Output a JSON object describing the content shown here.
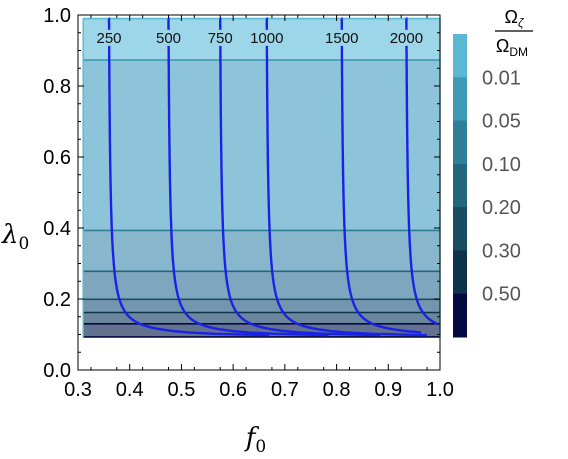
{
  "chart_data": {
    "type": "contour",
    "xlabel": {
      "base": "f",
      "sub": "0"
    },
    "ylabel": {
      "base": "λ",
      "sub": "0"
    },
    "xlim": [
      0.3,
      1.0
    ],
    "ylim": [
      0.0,
      1.0
    ],
    "xticks": [
      "0.3",
      "0.4",
      "0.5",
      "0.6",
      "0.7",
      "0.8",
      "0.9",
      "1.0"
    ],
    "yticks": [
      "0.0",
      "0.2",
      "0.4",
      "0.6",
      "0.8",
      "1.0"
    ],
    "legend": {
      "title_num": "Ω",
      "title_num_sub": "ζ",
      "title_den": "Ω",
      "title_den_sub": "DM",
      "labels": [
        "0.01",
        "0.05",
        "0.10",
        "0.20",
        "0.30",
        "0.50"
      ],
      "colors": [
        "#5ab8d3",
        "#3f9ab5",
        "#2f7f98",
        "#23667d",
        "#184d63",
        "#0d344a",
        "#040a40"
      ]
    },
    "filled_region": {
      "x": [
        0.31,
        1.0
      ],
      "y": [
        0.09,
        0.99
      ],
      "band_boundaries": [
        0.99,
        0.873,
        0.393,
        0.278,
        0.199,
        0.162,
        0.13,
        0.093
      ],
      "band_colors": [
        "#9dd6e8",
        "#8ec4d9",
        "#88b7cd",
        "#7ea6be",
        "#7396ae",
        "#6a879e",
        "#62728f"
      ]
    },
    "contours": [
      {
        "label": "250",
        "x_vertical": 0.36
      },
      {
        "label": "500",
        "x_vertical": 0.475
      },
      {
        "label": "750",
        "x_vertical": 0.575
      },
      {
        "label": "1000",
        "x_vertical": 0.665
      },
      {
        "label": "1500",
        "x_vertical": 0.81
      },
      {
        "label": "2000",
        "x_vertical": 0.935
      }
    ],
    "contour_color": "#1a22e6",
    "y_asymptote": 0.09
  }
}
